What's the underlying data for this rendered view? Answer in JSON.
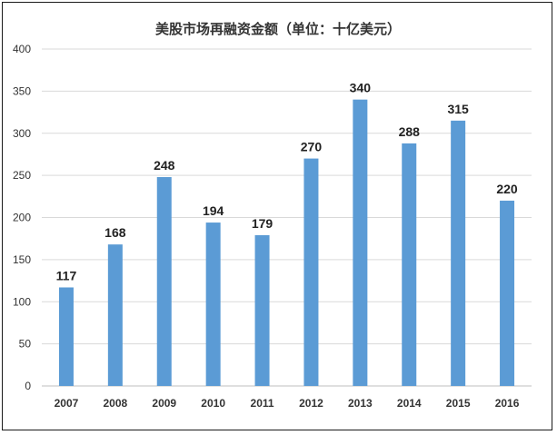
{
  "chart_data": {
    "type": "bar",
    "title": "美股市场再融资金额（单位：十亿美元）",
    "xlabel": "",
    "ylabel": "",
    "categories": [
      "2007",
      "2008",
      "2009",
      "2010",
      "2011",
      "2012",
      "2013",
      "2014",
      "2015",
      "2016"
    ],
    "values": [
      117,
      168,
      248,
      194,
      179,
      270,
      340,
      288,
      315,
      220
    ],
    "ylim": [
      0,
      400
    ],
    "yticks": [
      0,
      50,
      100,
      150,
      200,
      250,
      300,
      350,
      400
    ],
    "grid": true,
    "legend": "none",
    "bar_color": "#5b9bd5"
  }
}
